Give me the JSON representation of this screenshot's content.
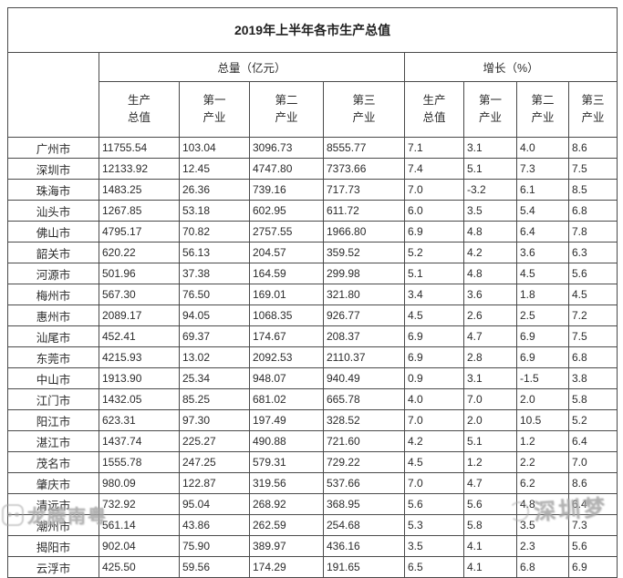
{
  "chart_data": {
    "type": "table",
    "title": "2019年上半年各市生产总值",
    "column_groups": [
      {
        "label": "总量（亿元）",
        "span": 4
      },
      {
        "label": "增长（%）",
        "span": 4
      }
    ],
    "sub_headers": [
      "生产\n总值",
      "第一\n产业",
      "第二\n产业",
      "第三\n产业",
      "生产\n总值",
      "第一\n产业",
      "第二\n产业",
      "第三\n产业"
    ],
    "corner_label": "",
    "rows": [
      {
        "city": "广州市",
        "values": [
          "11755.54",
          "103.04",
          "3096.73",
          "8555.77",
          "7.1",
          "3.1",
          "4.0",
          "8.6"
        ]
      },
      {
        "city": "深圳市",
        "values": [
          "12133.92",
          "12.45",
          "4747.80",
          "7373.66",
          "7.4",
          "5.1",
          "7.3",
          "7.5"
        ]
      },
      {
        "city": "珠海市",
        "values": [
          "1483.25",
          "26.36",
          "739.16",
          "717.73",
          "7.0",
          "-3.2",
          "6.1",
          "8.5"
        ]
      },
      {
        "city": "汕头市",
        "values": [
          "1267.85",
          "53.18",
          "602.95",
          "611.72",
          "6.0",
          "3.5",
          "5.4",
          "6.8"
        ]
      },
      {
        "city": "佛山市",
        "values": [
          "4795.17",
          "70.82",
          "2757.55",
          "1966.80",
          "6.9",
          "4.8",
          "6.4",
          "7.8"
        ]
      },
      {
        "city": "韶关市",
        "values": [
          "620.22",
          "56.13",
          "204.57",
          "359.52",
          "5.2",
          "4.2",
          "3.6",
          "6.3"
        ]
      },
      {
        "city": "河源市",
        "values": [
          "501.96",
          "37.38",
          "164.59",
          "299.98",
          "5.1",
          "4.8",
          "4.5",
          "5.6"
        ]
      },
      {
        "city": "梅州市",
        "values": [
          "567.30",
          "76.50",
          "169.01",
          "321.80",
          "3.4",
          "3.6",
          "1.8",
          "4.5"
        ]
      },
      {
        "city": "惠州市",
        "values": [
          "2089.17",
          "94.05",
          "1068.35",
          "926.77",
          "4.5",
          "2.6",
          "2.5",
          "7.2"
        ]
      },
      {
        "city": "汕尾市",
        "values": [
          "452.41",
          "69.37",
          "174.67",
          "208.37",
          "6.9",
          "4.7",
          "6.9",
          "7.5"
        ]
      },
      {
        "city": "东莞市",
        "values": [
          "4215.93",
          "13.02",
          "2092.53",
          "2110.37",
          "6.9",
          "2.8",
          "6.9",
          "6.8"
        ]
      },
      {
        "city": "中山市",
        "values": [
          "1913.90",
          "25.34",
          "948.07",
          "940.49",
          "0.9",
          "3.1",
          "-1.5",
          "3.8"
        ]
      },
      {
        "city": "江门市",
        "values": [
          "1432.05",
          "85.25",
          "681.02",
          "665.78",
          "4.0",
          "7.0",
          "2.0",
          "5.8"
        ]
      },
      {
        "city": "阳江市",
        "values": [
          "623.31",
          "97.30",
          "197.49",
          "328.52",
          "7.0",
          "2.0",
          "10.5",
          "5.2"
        ]
      },
      {
        "city": "湛江市",
        "values": [
          "1437.74",
          "225.27",
          "490.88",
          "721.60",
          "4.2",
          "5.1",
          "1.2",
          "6.4"
        ]
      },
      {
        "city": "茂名市",
        "values": [
          "1555.78",
          "247.25",
          "579.31",
          "729.22",
          "4.5",
          "1.2",
          "2.2",
          "7.0"
        ]
      },
      {
        "city": "肇庆市",
        "values": [
          "980.09",
          "122.87",
          "319.56",
          "537.66",
          "7.0",
          "4.7",
          "6.2",
          "8.6"
        ]
      },
      {
        "city": "清远市",
        "values": [
          "732.92",
          "95.04",
          "268.92",
          "368.95",
          "5.6",
          "5.6",
          "4.8",
          "6.4"
        ]
      },
      {
        "city": "潮州市",
        "values": [
          "561.14",
          "43.86",
          "262.59",
          "254.68",
          "5.3",
          "5.8",
          "3.5",
          "7.3"
        ]
      },
      {
        "city": "揭阳市",
        "values": [
          "902.04",
          "75.90",
          "389.97",
          "436.16",
          "3.5",
          "4.1",
          "2.3",
          "5.6"
        ]
      },
      {
        "city": "云浮市",
        "values": [
          "425.50",
          "59.56",
          "174.29",
          "191.65",
          "6.5",
          "4.1",
          "6.8",
          "6.9"
        ]
      }
    ]
  },
  "watermarks": {
    "bottom_left_text": "龙腾南粤",
    "bottom_right_text": "深圳梦"
  },
  "colors": {
    "border": "#4a4a4a",
    "text": "#2b2b2b",
    "watermark_grey": "#a8a8a8",
    "background": "#ffffff"
  }
}
